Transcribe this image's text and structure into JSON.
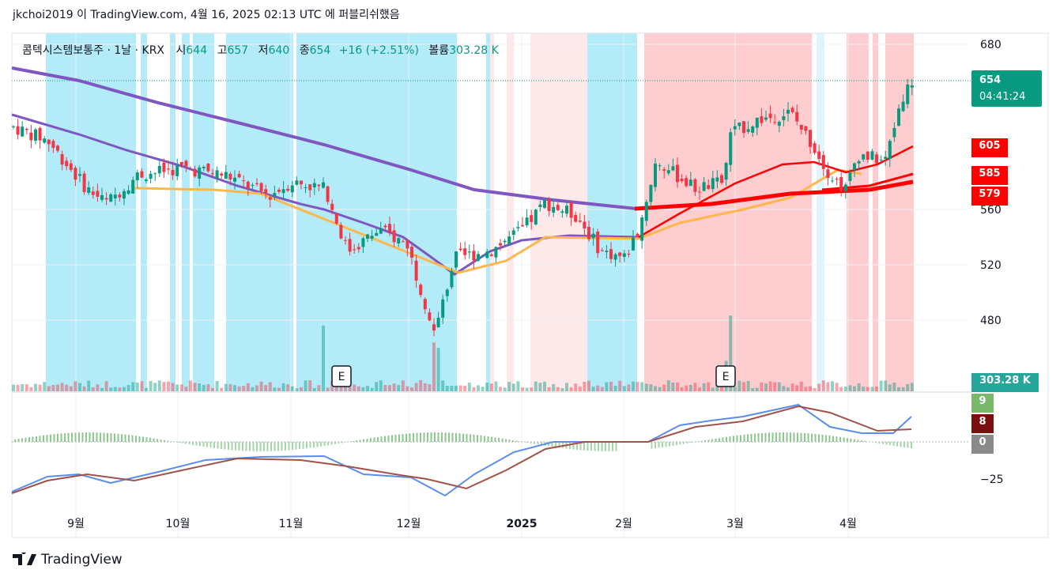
{
  "header": {
    "text": "jkchoi2019 이 TradingView.com, 4월 16, 2025 02:13 UTC 에 퍼블리쉬했음"
  },
  "legend": {
    "symbol": "콤텍시스템보통주 · 1날 · KRX",
    "open_label": "시",
    "open": "644",
    "high_label": "고",
    "high": "657",
    "low_label": "저",
    "low": "640",
    "close_label": "종",
    "close": "654",
    "change": "+16 (+2.51%)",
    "volume_label": "볼륨",
    "volume": "303.28 K"
  },
  "price_axis": {
    "ticks": [
      "680",
      "560",
      "520",
      "480"
    ]
  },
  "price_tags": {
    "last": "654",
    "countdown": "04:41:24",
    "ma1": "605",
    "ma2": "585",
    "ma3": "579",
    "volume": "303.28 K"
  },
  "osc_axis": {
    "tick": "−25",
    "tag1": "9",
    "tag2": "8",
    "tag3": "0"
  },
  "time_axis": [
    "9월",
    "10월",
    "11월",
    "12월",
    "2025",
    "2월",
    "3월",
    "4월"
  ],
  "earnings_markers": [
    "E",
    "E"
  ],
  "brand": "TradingView",
  "colors": {
    "up": "#089981",
    "down": "#f23645",
    "bg_blue": "#b3ebf9",
    "bg_red": "#fdcdd0",
    "ma_purple": "#7e57c2",
    "ma_red": "#ff0000",
    "ma_orange": "#ffb74d",
    "macd_blue": "#5b8def",
    "macd_signal": "#a0524a"
  },
  "chart_data": {
    "type": "candlestick",
    "x_range": [
      "2024-08",
      "2025-04-16"
    ],
    "y_range": [
      450,
      690
    ],
    "last_close": 654,
    "moving_averages": [
      {
        "value": 605,
        "color": "#ff0000"
      },
      {
        "value": 585,
        "color": "#ff0000"
      },
      {
        "value": 579,
        "color": "#ff0000"
      }
    ],
    "volume_last": "303.28 K",
    "oscillator": {
      "values": [
        9,
        8,
        0
      ]
    }
  }
}
